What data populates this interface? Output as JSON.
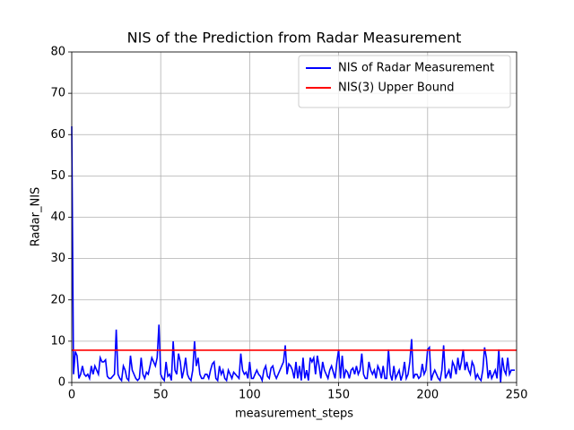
{
  "chart_data": {
    "type": "line",
    "title": "NIS of the Prediction from Radar Measurement",
    "x_label": "measurement_steps",
    "y_label": "Radar_NIS",
    "xlim": [
      0,
      250
    ],
    "xticks": [
      0,
      50,
      100,
      150,
      200,
      250
    ],
    "ylim": [
      0,
      80
    ],
    "yticks": [
      0,
      10,
      20,
      30,
      40,
      50,
      60,
      70,
      80
    ],
    "grid": true,
    "legend": "upper right",
    "series": [
      {
        "name": "NIS of Radar Measurement",
        "color": "#0000ff",
        "x": [
          0,
          1,
          2,
          3,
          4,
          5,
          6,
          7,
          8,
          9,
          10,
          11,
          12,
          13,
          14,
          15,
          16,
          17,
          18,
          19,
          20,
          21,
          22,
          23,
          24,
          25,
          26,
          27,
          28,
          29,
          30,
          31,
          32,
          33,
          34,
          35,
          36,
          37,
          38,
          39,
          40,
          41,
          42,
          43,
          44,
          45,
          46,
          47,
          48,
          49,
          50,
          51,
          52,
          53,
          54,
          55,
          56,
          57,
          58,
          59,
          60,
          61,
          62,
          63,
          64,
          65,
          66,
          67,
          68,
          69,
          70,
          71,
          72,
          73,
          74,
          75,
          76,
          77,
          78,
          79,
          80,
          81,
          82,
          83,
          84,
          85,
          86,
          87,
          88,
          89,
          90,
          91,
          92,
          93,
          94,
          95,
          96,
          97,
          98,
          99,
          100,
          101,
          102,
          103,
          104,
          105,
          106,
          107,
          108,
          109,
          110,
          111,
          112,
          113,
          114,
          115,
          116,
          117,
          118,
          119,
          120,
          121,
          122,
          123,
          124,
          125,
          126,
          127,
          128,
          129,
          130,
          131,
          132,
          133,
          134,
          135,
          136,
          137,
          138,
          139,
          140,
          141,
          142,
          143,
          144,
          145,
          146,
          147,
          148,
          149,
          150,
          151,
          152,
          153,
          154,
          155,
          156,
          157,
          158,
          159,
          160,
          161,
          162,
          163,
          164,
          165,
          166,
          167,
          168,
          169,
          170,
          171,
          172,
          173,
          174,
          175,
          176,
          177,
          178,
          179,
          180,
          181,
          182,
          183,
          184,
          185,
          186,
          187,
          188,
          189,
          190,
          191,
          192,
          193,
          194,
          195,
          196,
          197,
          198,
          199,
          200,
          201,
          202,
          203,
          204,
          205,
          206,
          207,
          208,
          209,
          210,
          211,
          212,
          213,
          214,
          215,
          216,
          217,
          218,
          219,
          220,
          221,
          222,
          223,
          224,
          225,
          226,
          227,
          228,
          229,
          230,
          231,
          232,
          233,
          234,
          235,
          236,
          237,
          238,
          239,
          240,
          241,
          242,
          243,
          244,
          245,
          246,
          247,
          248,
          249
        ],
        "values": [
          62,
          2,
          7.5,
          6.5,
          1,
          2,
          4,
          2,
          1.5,
          2,
          1,
          4,
          2,
          4,
          3,
          2,
          6,
          5,
          5,
          5.5,
          1.5,
          1,
          1,
          1.5,
          2,
          12.8,
          2,
          1,
          0.5,
          4,
          3,
          1,
          0.5,
          6.5,
          3,
          2,
          1,
          0.5,
          1,
          6,
          2,
          1,
          2.5,
          2,
          4,
          6,
          5,
          4,
          6,
          14,
          2,
          1,
          0.5,
          5,
          1.5,
          2,
          0.5,
          10,
          3,
          2,
          7,
          5,
          1,
          3,
          6,
          2,
          1,
          0.5,
          3,
          10,
          4,
          6,
          2,
          1,
          1,
          2,
          2,
          1,
          3,
          4.5,
          5,
          1,
          0.5,
          4,
          2,
          3,
          1,
          0.5,
          3,
          2,
          1,
          2.5,
          2,
          1.5,
          1,
          7,
          3,
          2,
          2.5,
          1,
          5,
          1,
          1,
          2,
          3,
          2,
          1.5,
          0.5,
          3,
          4,
          1.5,
          1,
          3.5,
          4,
          2,
          1,
          2,
          3,
          4,
          5,
          9,
          2,
          4.5,
          4,
          3,
          1,
          5,
          1,
          4,
          0.5,
          6,
          1,
          3,
          0.5,
          6,
          5,
          6,
          2,
          6.5,
          4,
          1,
          5,
          3,
          2,
          1,
          3,
          4,
          2.5,
          1,
          5,
          8,
          1,
          6.5,
          1,
          3,
          2.5,
          1,
          3,
          3.5,
          2,
          4,
          2,
          3,
          7,
          2,
          1,
          1,
          5,
          3,
          2,
          3,
          1,
          4,
          3,
          1,
          4,
          1,
          1,
          8,
          2,
          0.5,
          4,
          1,
          2,
          3,
          0.5,
          2,
          5,
          1,
          2,
          5,
          10.5,
          1,
          2,
          2,
          1,
          1.5,
          4.5,
          2,
          3,
          8,
          8.5,
          0.5,
          2,
          3,
          2,
          1,
          0.5,
          3,
          9,
          1,
          2,
          3,
          1,
          5,
          4,
          2,
          6,
          3,
          5,
          8,
          3,
          5,
          3,
          2,
          5,
          4,
          1,
          2,
          1,
          0.5,
          3,
          8.5,
          6,
          1,
          3,
          1,
          2,
          3,
          1,
          8,
          0,
          6,
          3,
          2,
          6,
          2,
          3,
          3,
          3
        ]
      },
      {
        "name": "NIS(3) Upper Bound",
        "color": "#ff0000",
        "x": [
          0,
          250
        ],
        "values": [
          7.815,
          7.815
        ]
      }
    ]
  }
}
